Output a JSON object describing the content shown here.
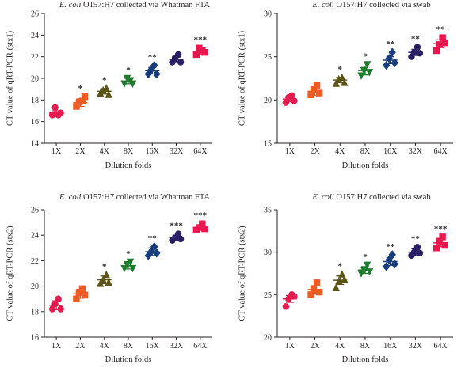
{
  "chart_data": [
    {
      "type": "scatter",
      "title_italic": "E. coli",
      "title_rest": " O157:H7 collected via Whatman FTA",
      "xlabel": "Dilution folds",
      "ylabel": "CT value of qRT-PCR (stx1)",
      "categories": [
        "1X",
        "2X",
        "4X",
        "8X",
        "16X",
        "32X",
        "64X"
      ],
      "ylim": [
        14,
        26
      ],
      "yticks": [
        14,
        16,
        18,
        20,
        22,
        24,
        26
      ],
      "markers": [
        "circle",
        "square",
        "triangle-up",
        "triangle-down",
        "diamond",
        "circle",
        "square"
      ],
      "means": [
        16.8,
        17.75,
        18.8,
        19.75,
        20.7,
        21.75,
        22.5
      ],
      "sem": [
        0.2,
        0.35,
        0.25,
        0.25,
        0.3,
        0.2,
        0.3
      ],
      "points": [
        [
          16.6,
          17.3,
          16.6,
          16.8
        ],
        [
          17.4,
          17.8,
          17.9,
          18.3
        ],
        [
          18.6,
          18.9,
          19.1,
          18.5
        ],
        [
          19.5,
          20.0,
          19.8,
          19.5
        ],
        [
          20.4,
          20.8,
          21.2,
          20.4
        ],
        [
          21.5,
          21.9,
          22.2,
          21.5
        ],
        [
          22.2,
          22.8,
          22.6,
          22.4
        ]
      ],
      "significance": [
        "",
        "*",
        "*",
        "*",
        "**",
        "",
        "***"
      ]
    },
    {
      "type": "scatter",
      "title_italic": "E. coli",
      "title_rest": " O157:H7 collected via swab",
      "xlabel": "Dilution folds",
      "ylabel": "CT value of qRT-PCR (stx1)",
      "categories": [
        "1X",
        "2X",
        "4X",
        "8X",
        "16X",
        "32X",
        "64X"
      ],
      "ylim": [
        15,
        30
      ],
      "yticks": [
        15,
        20,
        25,
        30
      ],
      "markers": [
        "circle",
        "square",
        "triangle-up",
        "triangle-down",
        "diamond",
        "circle",
        "square"
      ],
      "means": [
        20.1,
        21.0,
        22.3,
        23.4,
        24.6,
        25.5,
        26.5
      ],
      "sem": [
        0.3,
        0.45,
        0.3,
        0.5,
        0.4,
        0.35,
        0.45
      ],
      "points": [
        [
          19.7,
          20.3,
          20.5,
          19.9
        ],
        [
          20.6,
          21.2,
          21.7,
          20.8
        ],
        [
          21.9,
          22.4,
          22.6,
          22.0
        ],
        [
          22.8,
          23.4,
          24.1,
          23.2
        ],
        [
          24.0,
          24.8,
          25.5,
          24.3
        ],
        [
          25.0,
          25.5,
          26.1,
          25.4
        ],
        [
          25.7,
          26.4,
          27.2,
          26.6
        ]
      ],
      "significance": [
        "",
        "",
        "*",
        "*",
        "**",
        "**",
        "**"
      ]
    },
    {
      "type": "scatter",
      "title_italic": "E. coli",
      "title_rest": " O157:H7 collected via Whatman FTA",
      "xlabel": "Dilution folds",
      "ylabel": "CT value of qRT-PCR (stx2)",
      "categories": [
        "1X",
        "2X",
        "4X",
        "8X",
        "16X",
        "32X",
        "64X"
      ],
      "ylim": [
        16,
        26
      ],
      "yticks": [
        16,
        18,
        20,
        22,
        24,
        26
      ],
      "markers": [
        "circle",
        "square",
        "triangle-up",
        "triangle-down",
        "diamond",
        "circle",
        "square"
      ],
      "means": [
        18.5,
        19.4,
        20.5,
        21.6,
        22.7,
        23.8,
        24.6
      ],
      "sem": [
        0.35,
        0.35,
        0.3,
        0.25,
        0.3,
        0.2,
        0.2
      ],
      "points": [
        [
          18.2,
          18.6,
          19.0,
          18.2
        ],
        [
          19.0,
          19.5,
          19.8,
          19.3
        ],
        [
          20.2,
          20.5,
          20.9,
          20.3
        ],
        [
          21.4,
          21.7,
          21.9,
          21.4
        ],
        [
          22.4,
          22.7,
          23.1,
          22.6
        ],
        [
          23.6,
          23.8,
          24.1,
          23.7
        ],
        [
          24.4,
          24.6,
          24.9,
          24.5
        ]
      ],
      "significance": [
        "",
        "",
        "*",
        "*",
        "**",
        "***",
        "***"
      ]
    },
    {
      "type": "scatter",
      "title_italic": "E. coli",
      "title_rest": " O157:H7 collected via swab",
      "xlabel": "Dilution folds",
      "ylabel": "CT value of qRT-PCR (stx2)",
      "categories": [
        "1X",
        "2X",
        "4X",
        "8X",
        "16X",
        "32X",
        "64X"
      ],
      "ylim": [
        20,
        35
      ],
      "yticks": [
        20,
        25,
        30,
        35
      ],
      "markers": [
        "circle",
        "square",
        "triangle-up",
        "triangle-down",
        "diamond",
        "circle",
        "square"
      ],
      "means": [
        24.5,
        25.6,
        26.7,
        27.9,
        28.9,
        30.0,
        31.1
      ],
      "sem": [
        0.4,
        0.45,
        0.5,
        0.4,
        0.45,
        0.4,
        0.45
      ],
      "points": [
        [
          23.6,
          24.5,
          25.0,
          24.8
        ],
        [
          25.0,
          25.6,
          26.4,
          25.3
        ],
        [
          25.8,
          26.6,
          27.4,
          26.8
        ],
        [
          27.5,
          27.9,
          28.5,
          27.7
        ],
        [
          28.3,
          29.1,
          29.7,
          28.6
        ],
        [
          29.6,
          30.0,
          30.6,
          29.9
        ],
        [
          30.5,
          31.3,
          31.8,
          30.8
        ]
      ],
      "significance": [
        "",
        "",
        "*",
        "*",
        "**",
        "**",
        "***"
      ]
    }
  ],
  "colors": [
    "#e31b4f",
    "#ee5a24",
    "#5b5416",
    "#1e7a2c",
    "#163d7a",
    "#2b1f63",
    "#e8174e"
  ],
  "axis_color": "#231f20"
}
